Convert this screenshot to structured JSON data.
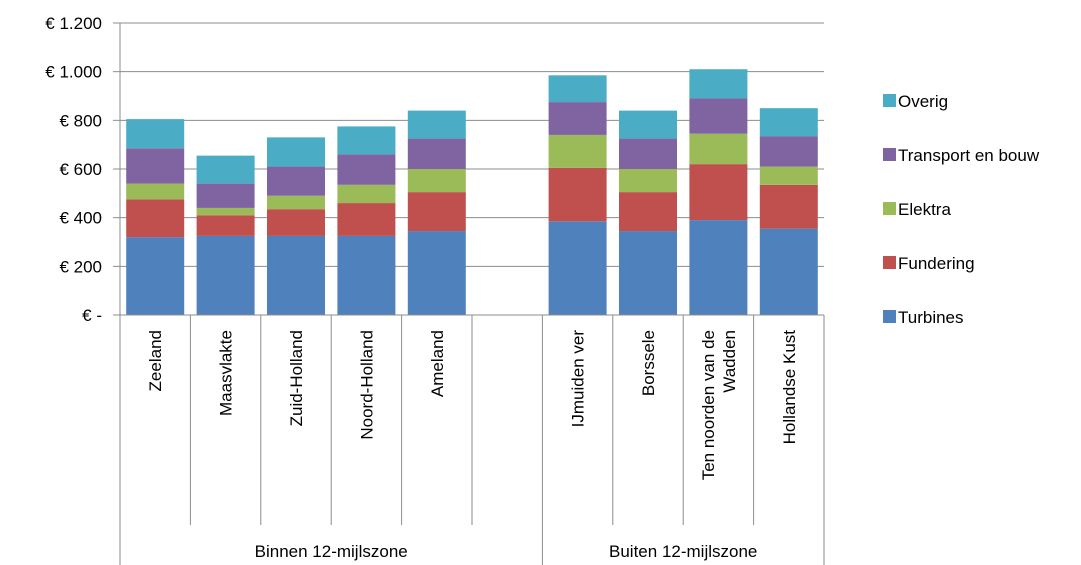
{
  "chart_data": {
    "type": "bar",
    "stacked": true,
    "title": "",
    "xlabel": "",
    "ylabel": "",
    "ylim": [
      0,
      1200
    ],
    "grid": true,
    "legend_position": "right",
    "yticks": [
      {
        "value": 0,
        "label": "€ -"
      },
      {
        "value": 200,
        "label": "€ 200"
      },
      {
        "value": 400,
        "label": "€ 400"
      },
      {
        "value": 600,
        "label": "€ 600"
      },
      {
        "value": 800,
        "label": "€ 800"
      },
      {
        "value": 1000,
        "label": "€ 1.000"
      },
      {
        "value": 1200,
        "label": "€ 1.200"
      }
    ],
    "categories": [
      "Zeeland",
      "Maasvlakte",
      "Zuid-Holland",
      "Noord-Holland",
      "Ameland",
      "",
      "IJmuiden ver",
      "Borssele",
      "Ten noorden van de Wadden",
      "Hollandse Kust"
    ],
    "category_label_lines": [
      [
        "Zeeland"
      ],
      [
        "Maasvlakte"
      ],
      [
        "Zuid-Holland"
      ],
      [
        "Noord-Holland"
      ],
      [
        "Ameland"
      ],
      [],
      [
        "IJmuiden ver"
      ],
      [
        "Borssele"
      ],
      [
        "Ten noorden van de",
        "Wadden"
      ],
      [
        "Hollandse Kust"
      ]
    ],
    "groups": [
      {
        "label": "Binnen 12-mijlszone",
        "start": 0,
        "end": 5
      },
      {
        "label": "Buiten 12-mijlszone",
        "start": 6,
        "end": 9
      }
    ],
    "series": [
      {
        "name": "Turbines",
        "color": "#4f81bd",
        "values": [
          320,
          325,
          325,
          325,
          345,
          null,
          385,
          345,
          390,
          355
        ]
      },
      {
        "name": "Fundering",
        "color": "#c0504d",
        "values": [
          155,
          85,
          110,
          135,
          160,
          null,
          220,
          160,
          230,
          180
        ]
      },
      {
        "name": "Elektra",
        "color": "#9bbb59",
        "values": [
          65,
          30,
          55,
          75,
          95,
          null,
          135,
          95,
          125,
          75
        ]
      },
      {
        "name": "Transport en bouw",
        "color": "#8064a2",
        "values": [
          145,
          100,
          120,
          125,
          125,
          null,
          135,
          125,
          145,
          125
        ]
      },
      {
        "name": "Overig",
        "color": "#4bacc6",
        "values": [
          120,
          115,
          120,
          115,
          115,
          null,
          110,
          115,
          120,
          115
        ]
      }
    ]
  }
}
